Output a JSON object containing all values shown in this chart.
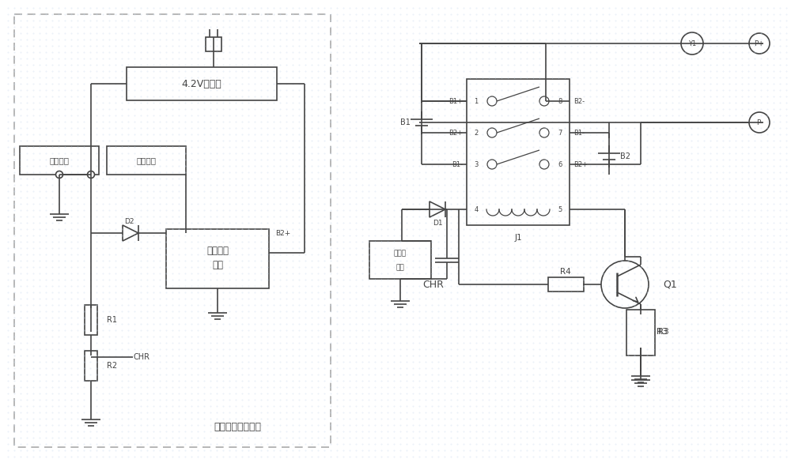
{
  "line_color": "#444444",
  "text_color": "#444444",
  "light_text": "#888888",
  "bg_dotted": "#e8eef4",
  "dashed_color": "#aaaaaa",
  "label_bottom": "恒流恒壓充電電路",
  "label_adapter": "4.2V適配器",
  "label_charge_mgmt_1": "充電管理",
  "label_charge_mgmt_2": "電路",
  "label_charge_neg": "充電負級",
  "label_charge_pos": "充電正極",
  "label_relay_power_1": "繼電器",
  "label_relay_power_2": "電源",
  "figsize": [
    10.0,
    5.81
  ],
  "dpi": 100
}
